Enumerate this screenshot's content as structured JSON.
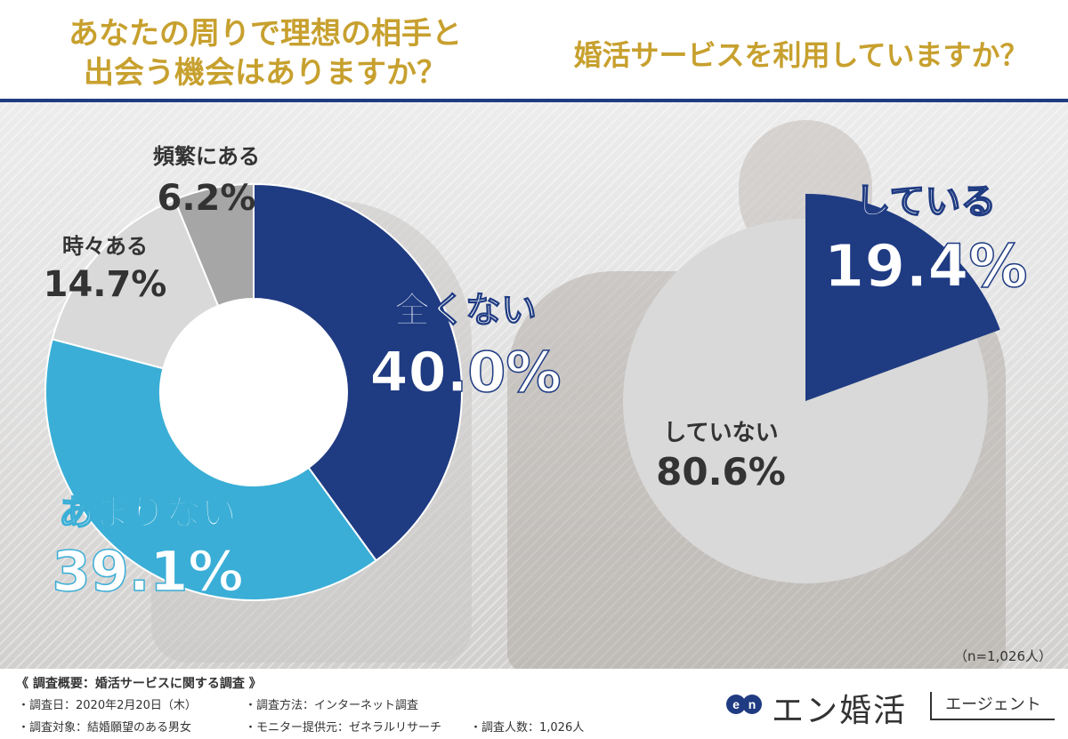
{
  "titles": {
    "left": "あなたの周りで理想の相手と\n出会う機会はありますか？",
    "right": "婚活サービスを利用していますか？"
  },
  "chart_data": [
    {
      "type": "pie",
      "style": "donut",
      "question": "あなたの周りで理想の相手と出会う機会はありますか？",
      "categories": [
        "全くない",
        "あまりない",
        "時々ある",
        "頻繁にある"
      ],
      "values": [
        40.0,
        39.1,
        14.7,
        6.2
      ],
      "labels": [
        "40.0%",
        "39.1%",
        "14.7%",
        "6.2%"
      ],
      "colors": [
        "#1f3b82",
        "#3aaed6",
        "#d9d9d9",
        "#a6a6a6"
      ]
    },
    {
      "type": "pie",
      "question": "婚活サービスを利用していますか？",
      "categories": [
        "している",
        "していない"
      ],
      "values": [
        19.4,
        80.6
      ],
      "labels": [
        "19.4%",
        "80.6%"
      ],
      "colors": [
        "#1f3b82",
        "#d9d9d9"
      ]
    }
  ],
  "sample_note": "（n=1,026人）",
  "footer": {
    "title": "《 調査概要：婚活サービスに関する調査 》",
    "items": [
      "・調査日：2020年2月20日（木）",
      "・調査方法：インターネット調査",
      "・調査対象：結婚願望のある男女",
      "・モニター提供元：ゼネラルリサーチ",
      "・調査人数：1,026人"
    ]
  },
  "logo": {
    "mark": "en",
    "name": "エン婚活",
    "sub": "エージェント",
    "color": "#1f3b82"
  }
}
